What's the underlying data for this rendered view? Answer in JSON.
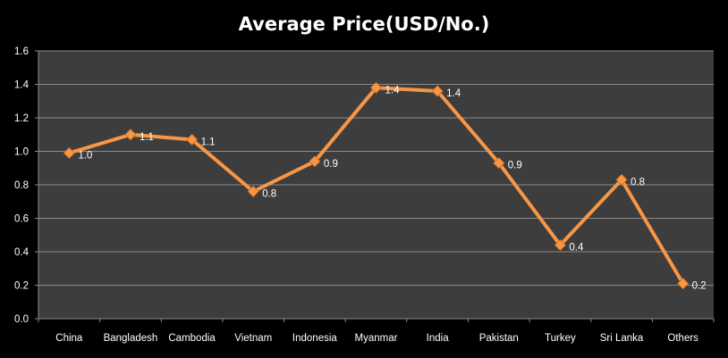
{
  "chart_data": {
    "type": "line",
    "title": "Average Price(USD/No.)",
    "xlabel": "",
    "ylabel": "",
    "categories": [
      "China",
      "Bangladesh",
      "Cambodia",
      "Vietnam",
      "Indonesia",
      "Myanmar",
      "India",
      "Pakistan",
      "Turkey",
      "Sri Lanka",
      "Others"
    ],
    "series": [
      {
        "values": [
          0.99,
          1.1,
          1.07,
          0.76,
          0.94,
          1.38,
          1.36,
          0.93,
          0.44,
          0.83,
          0.21
        ],
        "labels": [
          "1.0",
          "1.1",
          "1.1",
          "0.8",
          "0.9",
          "1.4",
          "1.4",
          "0.9",
          "0.4",
          "0.8",
          "0.2"
        ]
      }
    ],
    "yticks": [
      "0.0",
      "0.2",
      "0.4",
      "0.6",
      "0.8",
      "1.0",
      "1.2",
      "1.4",
      "1.6"
    ],
    "ylim": [
      0,
      1.6
    ],
    "grid": true,
    "legend": "none",
    "colors": {
      "background": "#000000",
      "plot_area": "#3d3d3d",
      "gridline": "#8a8a8a",
      "line": "#f79646",
      "marker": "#f79646",
      "text": "#ffffff"
    }
  }
}
